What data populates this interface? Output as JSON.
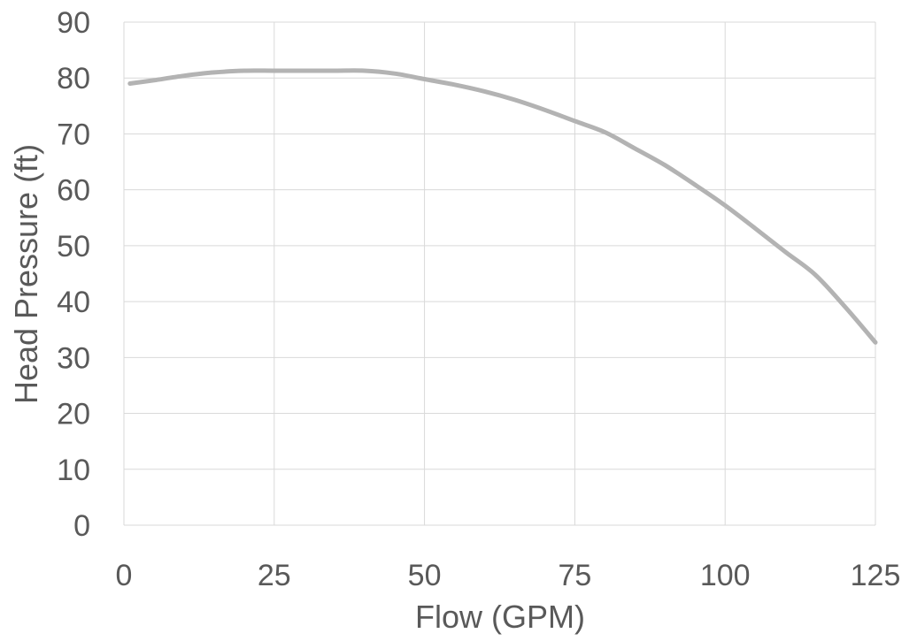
{
  "chart_data": {
    "type": "line",
    "title": "",
    "xlabel": "Flow (GPM)",
    "ylabel": "Head Pressure (ft)",
    "xlim": [
      0,
      125
    ],
    "ylim": [
      0,
      90
    ],
    "xticks": [
      0,
      25,
      50,
      75,
      100,
      125
    ],
    "yticks": [
      0,
      10,
      20,
      30,
      40,
      50,
      60,
      70,
      80,
      90
    ],
    "grid": true,
    "legend": "none",
    "line_color": "#b3b3b3",
    "series": [
      {
        "x": [
          1,
          5,
          10,
          15,
          20,
          25,
          30,
          35,
          40,
          45,
          50,
          55,
          60,
          65,
          70,
          75,
          80,
          85,
          90,
          95,
          100,
          105,
          110,
          115,
          120,
          125
        ],
        "values": [
          79,
          79.6,
          80.4,
          81,
          81.3,
          81.3,
          81.3,
          81.3,
          81.3,
          80.8,
          79.8,
          78.8,
          77.6,
          76.1,
          74.3,
          72.3,
          70.3,
          67.4,
          64.4,
          60.9,
          57.2,
          53.1,
          48.9,
          44.8,
          39,
          32.7
        ]
      }
    ]
  }
}
